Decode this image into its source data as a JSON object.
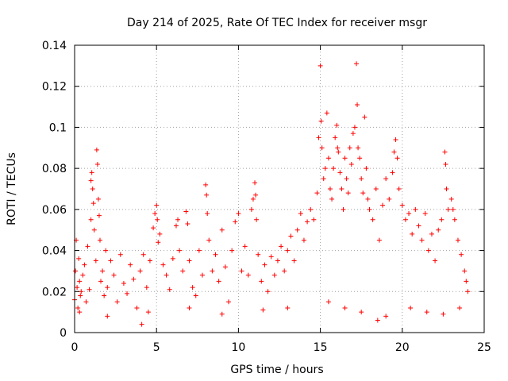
{
  "chart_data": {
    "type": "scatter",
    "title": "Day 214 of 2025, Rate Of TEC Index for receiver msgr",
    "xlabel": "GPS time / hours",
    "ylabel": "ROTI / TECUs",
    "xlim": [
      0,
      25
    ],
    "ylim": [
      0,
      0.14
    ],
    "xticks": [
      0,
      5,
      10,
      15,
      20,
      25
    ],
    "xtick_labels": [
      "0",
      "5",
      "10",
      "15",
      "20",
      "25"
    ],
    "yticks": [
      0,
      0.02,
      0.04,
      0.06,
      0.08,
      0.1,
      0.12,
      0.14
    ],
    "ytick_labels": [
      "0",
      "0.02",
      "0.04",
      "0.06",
      "0.08",
      "0.1",
      "0.12",
      "0.14"
    ],
    "grid": true,
    "marker": "plus",
    "color": "#ff0000",
    "series": [
      {
        "name": "ROTI",
        "points": [
          [
            0.0,
            0.016
          ],
          [
            0.05,
            0.03
          ],
          [
            0.1,
            0.045
          ],
          [
            0.15,
            0.022
          ],
          [
            0.2,
            0.012
          ],
          [
            0.25,
            0.036
          ],
          [
            0.3,
            0.025
          ],
          [
            0.35,
            0.018
          ],
          [
            0.4,
            0.02
          ],
          [
            0.5,
            0.028
          ],
          [
            0.6,
            0.033
          ],
          [
            0.7,
            0.015
          ],
          [
            0.8,
            0.042
          ],
          [
            0.9,
            0.021
          ],
          [
            1.0,
            0.055
          ],
          [
            1.0,
            0.074
          ],
          [
            1.05,
            0.078
          ],
          [
            1.1,
            0.07
          ],
          [
            1.15,
            0.063
          ],
          [
            1.2,
            0.05
          ],
          [
            1.3,
            0.035
          ],
          [
            1.35,
            0.089
          ],
          [
            1.4,
            0.082
          ],
          [
            1.45,
            0.065
          ],
          [
            1.5,
            0.057
          ],
          [
            1.55,
            0.045
          ],
          [
            1.6,
            0.025
          ],
          [
            1.7,
            0.03
          ],
          [
            1.8,
            0.018
          ],
          [
            1.9,
            0.04
          ],
          [
            2.0,
            0.022
          ],
          [
            2.2,
            0.035
          ],
          [
            2.4,
            0.028
          ],
          [
            2.6,
            0.015
          ],
          [
            2.8,
            0.038
          ],
          [
            3.0,
            0.024
          ],
          [
            3.2,
            0.019
          ],
          [
            3.4,
            0.033
          ],
          [
            3.6,
            0.026
          ],
          [
            3.8,
            0.012
          ],
          [
            4.0,
            0.03
          ],
          [
            4.1,
            0.004
          ],
          [
            4.2,
            0.038
          ],
          [
            4.4,
            0.022
          ],
          [
            4.6,
            0.035
          ],
          [
            4.8,
            0.051
          ],
          [
            4.9,
            0.058
          ],
          [
            5.0,
            0.062
          ],
          [
            5.05,
            0.055
          ],
          [
            5.1,
            0.044
          ],
          [
            5.2,
            0.048
          ],
          [
            5.4,
            0.033
          ],
          [
            5.6,
            0.028
          ],
          [
            5.8,
            0.021
          ],
          [
            6.0,
            0.036
          ],
          [
            6.2,
            0.052
          ],
          [
            6.3,
            0.055
          ],
          [
            6.4,
            0.04
          ],
          [
            6.6,
            0.03
          ],
          [
            6.8,
            0.059
          ],
          [
            6.9,
            0.053
          ],
          [
            7.0,
            0.035
          ],
          [
            7.2,
            0.022
          ],
          [
            7.4,
            0.018
          ],
          [
            7.6,
            0.04
          ],
          [
            7.8,
            0.028
          ],
          [
            8.0,
            0.072
          ],
          [
            8.05,
            0.067
          ],
          [
            8.1,
            0.058
          ],
          [
            8.2,
            0.045
          ],
          [
            8.4,
            0.03
          ],
          [
            8.6,
            0.038
          ],
          [
            8.8,
            0.025
          ],
          [
            9.0,
            0.05
          ],
          [
            9.2,
            0.032
          ],
          [
            9.4,
            0.015
          ],
          [
            9.6,
            0.04
          ],
          [
            9.8,
            0.054
          ],
          [
            10.0,
            0.058
          ],
          [
            10.2,
            0.03
          ],
          [
            10.4,
            0.042
          ],
          [
            10.6,
            0.028
          ],
          [
            10.8,
            0.06
          ],
          [
            10.9,
            0.065
          ],
          [
            11.0,
            0.073
          ],
          [
            11.05,
            0.067
          ],
          [
            11.1,
            0.055
          ],
          [
            11.2,
            0.038
          ],
          [
            11.4,
            0.025
          ],
          [
            11.6,
            0.033
          ],
          [
            11.8,
            0.02
          ],
          [
            12.0,
            0.037
          ],
          [
            12.2,
            0.028
          ],
          [
            12.4,
            0.035
          ],
          [
            12.6,
            0.042
          ],
          [
            12.8,
            0.03
          ],
          [
            13.0,
            0.04
          ],
          [
            13.2,
            0.047
          ],
          [
            13.4,
            0.035
          ],
          [
            13.6,
            0.05
          ],
          [
            13.8,
            0.058
          ],
          [
            14.0,
            0.045
          ],
          [
            14.2,
            0.054
          ],
          [
            14.4,
            0.06
          ],
          [
            14.6,
            0.055
          ],
          [
            14.8,
            0.068
          ],
          [
            14.9,
            0.095
          ],
          [
            15.0,
            0.13
          ],
          [
            15.05,
            0.103
          ],
          [
            15.1,
            0.09
          ],
          [
            15.2,
            0.075
          ],
          [
            15.3,
            0.08
          ],
          [
            15.4,
            0.107
          ],
          [
            15.5,
            0.085
          ],
          [
            15.6,
            0.07
          ],
          [
            15.7,
            0.065
          ],
          [
            15.8,
            0.08
          ],
          [
            15.9,
            0.095
          ],
          [
            16.0,
            0.101
          ],
          [
            16.05,
            0.09
          ],
          [
            16.1,
            0.088
          ],
          [
            16.2,
            0.078
          ],
          [
            16.3,
            0.07
          ],
          [
            16.4,
            0.06
          ],
          [
            16.5,
            0.085
          ],
          [
            16.6,
            0.075
          ],
          [
            16.7,
            0.068
          ],
          [
            16.8,
            0.09
          ],
          [
            16.9,
            0.082
          ],
          [
            17.0,
            0.097
          ],
          [
            17.1,
            0.1
          ],
          [
            17.2,
            0.131
          ],
          [
            17.25,
            0.111
          ],
          [
            17.3,
            0.09
          ],
          [
            17.4,
            0.085
          ],
          [
            17.5,
            0.075
          ],
          [
            17.6,
            0.068
          ],
          [
            17.7,
            0.105
          ],
          [
            17.8,
            0.08
          ],
          [
            17.9,
            0.065
          ],
          [
            18.0,
            0.06
          ],
          [
            18.2,
            0.055
          ],
          [
            18.4,
            0.07
          ],
          [
            18.6,
            0.045
          ],
          [
            18.8,
            0.062
          ],
          [
            19.0,
            0.075
          ],
          [
            19.2,
            0.065
          ],
          [
            19.4,
            0.078
          ],
          [
            19.5,
            0.088
          ],
          [
            19.6,
            0.094
          ],
          [
            19.7,
            0.085
          ],
          [
            19.8,
            0.07
          ],
          [
            20.0,
            0.062
          ],
          [
            20.2,
            0.055
          ],
          [
            20.4,
            0.058
          ],
          [
            20.6,
            0.048
          ],
          [
            20.8,
            0.06
          ],
          [
            21.0,
            0.052
          ],
          [
            21.2,
            0.045
          ],
          [
            21.4,
            0.058
          ],
          [
            21.6,
            0.04
          ],
          [
            21.8,
            0.048
          ],
          [
            22.0,
            0.035
          ],
          [
            22.2,
            0.05
          ],
          [
            22.4,
            0.055
          ],
          [
            22.6,
            0.088
          ],
          [
            22.65,
            0.082
          ],
          [
            22.7,
            0.07
          ],
          [
            22.8,
            0.06
          ],
          [
            23.0,
            0.065
          ],
          [
            23.1,
            0.06
          ],
          [
            23.2,
            0.055
          ],
          [
            23.4,
            0.045
          ],
          [
            23.6,
            0.038
          ],
          [
            23.8,
            0.03
          ],
          [
            23.9,
            0.025
          ],
          [
            24.0,
            0.02
          ],
          [
            0.3,
            0.01
          ],
          [
            2.0,
            0.008
          ],
          [
            4.5,
            0.01
          ],
          [
            7.0,
            0.012
          ],
          [
            9.0,
            0.009
          ],
          [
            11.5,
            0.011
          ],
          [
            13.0,
            0.012
          ],
          [
            15.5,
            0.015
          ],
          [
            16.5,
            0.012
          ],
          [
            17.5,
            0.01
          ],
          [
            18.5,
            0.006
          ],
          [
            19.0,
            0.008
          ],
          [
            20.5,
            0.012
          ],
          [
            21.5,
            0.01
          ],
          [
            22.5,
            0.009
          ],
          [
            23.5,
            0.012
          ]
        ]
      }
    ]
  }
}
